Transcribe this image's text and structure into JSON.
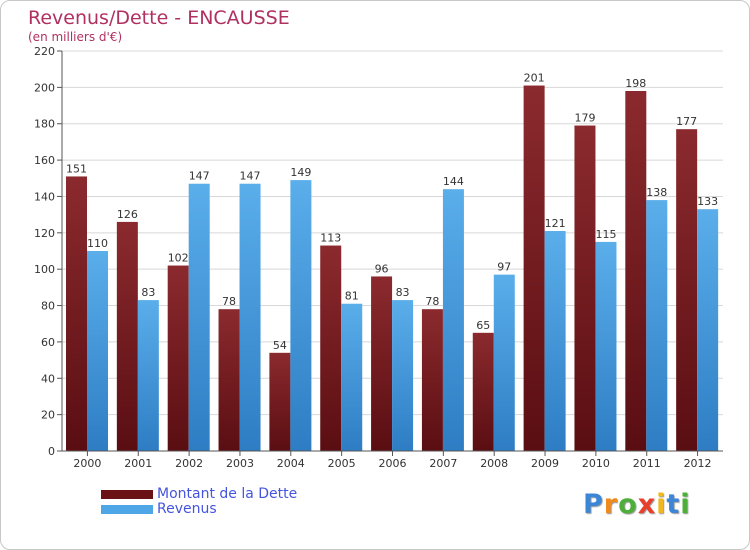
{
  "header": {
    "title": "Revenus/Dette - ENCAUSSE",
    "subtitle": "(en milliers d'€)"
  },
  "chart_data": {
    "type": "bar",
    "categories": [
      "2000",
      "2001",
      "2002",
      "2003",
      "2004",
      "2005",
      "2006",
      "2007",
      "2008",
      "2009",
      "2010",
      "2011",
      "2012"
    ],
    "series": [
      {
        "name": "Montant de la Dette",
        "values": [
          151,
          126,
          102,
          78,
          54,
          113,
          96,
          78,
          65,
          201,
          179,
          198,
          177
        ]
      },
      {
        "name": "Revenus",
        "values": [
          110,
          83,
          147,
          147,
          149,
          81,
          83,
          144,
          97,
          121,
          115,
          138,
          133
        ]
      }
    ],
    "title": "Revenus/Dette - ENCAUSSE",
    "subtitle": "(en milliers d'€)",
    "xlabel": "",
    "ylabel": "",
    "ylim": [
      0,
      220
    ],
    "yticks": [
      0,
      20,
      40,
      60,
      80,
      100,
      120,
      140,
      160,
      180,
      200,
      220
    ],
    "grid": true,
    "legend_position": "bottom-left",
    "colors": {
      "dette": "#8b2a2e",
      "dette_dark": "#5a0e12",
      "revenus": "#5aaeea",
      "revenus_dark": "#2e7dc4",
      "grid": "#d8d8d8",
      "axis": "#555555",
      "title": "#b03060",
      "legend_text": "#4455dd"
    }
  },
  "legend": {
    "items": [
      {
        "label": "Montant de la Dette",
        "color": "#6a1216"
      },
      {
        "label": "Revenus",
        "color": "#4fa6e6"
      }
    ]
  },
  "logo": {
    "letters": [
      {
        "char": "P",
        "color": "#3b86d6"
      },
      {
        "char": "r",
        "color": "#f08a1e"
      },
      {
        "char": "o",
        "color": "#4dae3a"
      },
      {
        "char": "x",
        "color": "#e83e2a"
      },
      {
        "char": "i",
        "color": "#f0b81e"
      },
      {
        "char": "t",
        "color": "#3b86d6"
      },
      {
        "char": "i",
        "color": "#4dae3a"
      }
    ]
  }
}
